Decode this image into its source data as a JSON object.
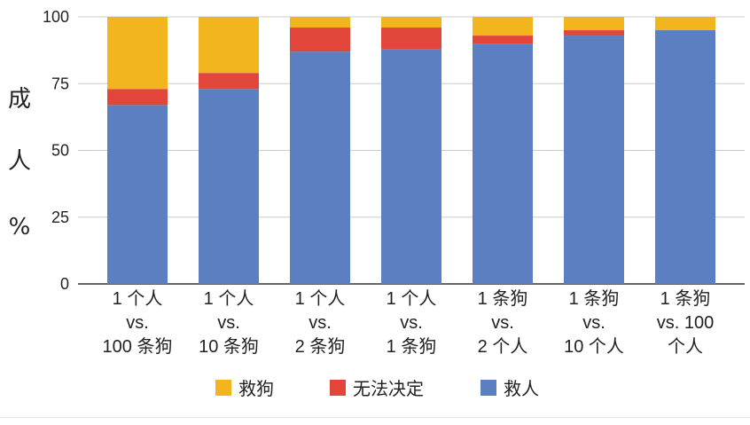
{
  "chart_data": {
    "type": "bar",
    "stacked": true,
    "title": "",
    "xlabel": "",
    "ylabel": [
      "成",
      "人",
      "%"
    ],
    "ylim": [
      0,
      100
    ],
    "yticks": [
      0,
      25,
      50,
      75,
      100
    ],
    "grid": true,
    "legend_position": "bottom",
    "categories": [
      [
        "1 个人",
        "vs.",
        "100 条狗"
      ],
      [
        "1 个人",
        "vs.",
        "10 条狗"
      ],
      [
        "1 个人",
        "vs.",
        "2 条狗"
      ],
      [
        "1 个人",
        "vs.",
        "1 条狗"
      ],
      [
        "1 条狗",
        "vs.",
        "2 个人"
      ],
      [
        "1 条狗",
        "vs.",
        "10 个人"
      ],
      [
        "1 条狗",
        "vs. 100",
        "个人"
      ]
    ],
    "series": [
      {
        "name": "救人",
        "color": "#5b7fc1",
        "values": [
          67,
          73,
          87,
          88,
          90,
          93,
          95
        ]
      },
      {
        "name": "无法决定",
        "color": "#e2453a",
        "values": [
          6,
          6,
          9,
          8,
          3,
          2,
          0
        ]
      },
      {
        "name": "救狗",
        "color": "#f2b51d",
        "values": [
          27,
          21,
          4,
          4,
          7,
          5,
          5
        ]
      }
    ],
    "legend_order": [
      "救狗",
      "无法决定",
      "救人"
    ]
  }
}
